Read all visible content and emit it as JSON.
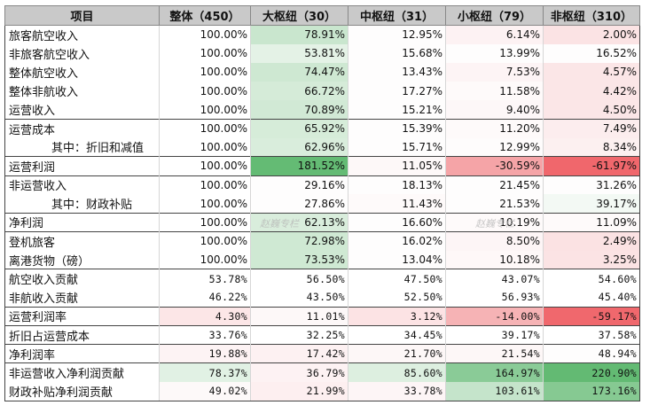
{
  "table": {
    "headers": [
      "项目",
      "整体（450）",
      "大枢纽（30）",
      "中枢纽（31）",
      "小枢纽（79）",
      "非枢纽（310）"
    ],
    "rows": [
      {
        "label": "旅客航空收入",
        "values": [
          "100.00%",
          "78.91%",
          "12.95%",
          "6.14%",
          "2.00%"
        ],
        "bg": [
          "#ffffff",
          "#c9e6ce",
          "#fefdfd",
          "#fdf2f3",
          "#fbe3e4"
        ],
        "group_top": true
      },
      {
        "label": "非旅客航空收入",
        "values": [
          "100.00%",
          "53.81%",
          "15.68%",
          "13.99%",
          "16.52%"
        ],
        "bg": [
          "#ffffff",
          "#e4f2e6",
          "#fefdfd",
          "#fefdfd",
          "#fefdfd"
        ]
      },
      {
        "label": "整体航空收入",
        "values": [
          "100.00%",
          "74.47%",
          "13.43%",
          "7.53%",
          "4.57%"
        ],
        "bg": [
          "#ffffff",
          "#cee8d2",
          "#fefdfd",
          "#fdf4f5",
          "#fbe6e7"
        ]
      },
      {
        "label": "整体非航收入",
        "values": [
          "100.00%",
          "66.72%",
          "17.27%",
          "11.58%",
          "4.42%"
        ],
        "bg": [
          "#ffffff",
          "#d5ebd8",
          "#fefdfd",
          "#fefafa",
          "#fbe6e7"
        ]
      },
      {
        "label": "运营收入",
        "values": [
          "100.00%",
          "70.89%",
          "15.21%",
          "9.40%",
          "4.50%"
        ],
        "bg": [
          "#ffffff",
          "#d1e9d5",
          "#fefdfd",
          "#fdf7f8",
          "#fbe6e7"
        ]
      },
      {
        "label": "运营成本",
        "values": [
          "100.00%",
          "65.92%",
          "15.39%",
          "11.20%",
          "7.49%"
        ],
        "bg": [
          "#ffffff",
          "#d6ecd9",
          "#fefdfd",
          "#fefafa",
          "#fcedee"
        ],
        "group_top": true
      },
      {
        "label": "其中：折旧和减值",
        "values": [
          "100.00%",
          "62.96%",
          "15.71%",
          "12.99%",
          "8.34%"
        ],
        "bg": [
          "#ffffff",
          "#d9eddc",
          "#fefdfd",
          "#fefcfc",
          "#fcf0f0"
        ],
        "sub": true
      },
      {
        "label": "运营利润",
        "values": [
          "100.00%",
          "181.52%",
          "11.05%",
          "-30.59%",
          "-61.97%"
        ],
        "bg": [
          "#ffffff",
          "#64bb74",
          "#fdf8f8",
          "#f5a4a7",
          "#f0676c"
        ],
        "group_top": true
      },
      {
        "label": "非运营收入",
        "values": [
          "100.00%",
          "29.16%",
          "18.13%",
          "21.45%",
          "31.26%"
        ],
        "bg": [
          "#ffffff",
          "#fefdfd",
          "#fefdfd",
          "#fefdfd",
          "#fefdfd"
        ],
        "group_top": true
      },
      {
        "label": "其中：财政补贴",
        "values": [
          "100.00%",
          "27.86%",
          "11.43%",
          "21.53%",
          "39.17%"
        ],
        "bg": [
          "#ffffff",
          "#fefdfd",
          "#fefafa",
          "#fefdfd",
          "#f3f9f4"
        ],
        "sub": true
      },
      {
        "label": "净利润",
        "values": [
          "100.00%",
          "62.13%",
          "16.60%",
          "10.19%",
          "11.09%"
        ],
        "bg": [
          "#ffffff",
          "#d9eddc",
          "#fefdfd",
          "#fefafa",
          "#fefafa"
        ],
        "group_top": true
      },
      {
        "label": "登机旅客",
        "values": [
          "100.00%",
          "72.98%",
          "16.02%",
          "8.50%",
          "2.49%"
        ],
        "bg": [
          "#ffffff",
          "#cfe9d3",
          "#fefdfd",
          "#fdf5f6",
          "#fbe2e3"
        ],
        "group_top": true
      },
      {
        "label": "离港货物（磅）",
        "values": [
          "100.00%",
          "73.53%",
          "13.04%",
          "10.18%",
          "3.25%"
        ],
        "bg": [
          "#ffffff",
          "#cfe9d3",
          "#fefdfd",
          "#fef8f8",
          "#fbe3e4"
        ]
      },
      {
        "label": "航空收入贡献",
        "values": [
          "53.78%",
          "56.50%",
          "47.50%",
          "43.07%",
          "54.60%"
        ],
        "bg": [
          "#ffffff",
          "#ffffff",
          "#ffffff",
          "#ffffff",
          "#ffffff"
        ],
        "group_top": true,
        "mono": true
      },
      {
        "label": "非航收入贡献",
        "values": [
          "46.22%",
          "43.50%",
          "52.50%",
          "56.93%",
          "45.40%"
        ],
        "bg": [
          "#ffffff",
          "#ffffff",
          "#ffffff",
          "#ffffff",
          "#ffffff"
        ],
        "mono": true
      },
      {
        "label": "运营利润率",
        "values": [
          "4.30%",
          "11.01%",
          "3.12%",
          "-14.00%",
          "-59.17%"
        ],
        "bg": [
          "#fce6e7",
          "#fdf8f8",
          "#fce3e4",
          "#f6b3b5",
          "#f0686d"
        ],
        "group_top": true,
        "mono": true
      },
      {
        "label": "折旧占运营成本",
        "values": [
          "33.76%",
          "32.25%",
          "34.45%",
          "39.17%",
          "37.58%"
        ],
        "bg": [
          "#ffffff",
          "#ffffff",
          "#ffffff",
          "#ffffff",
          "#ffffff"
        ],
        "group_top": true,
        "mono": true
      },
      {
        "label": "净利润率",
        "values": [
          "19.88%",
          "17.42%",
          "21.70%",
          "21.54%",
          "48.94%"
        ],
        "bg": [
          "#fdf3f4",
          "#fdf1f2",
          "#fdf7f7",
          "#fdf7f7",
          "#fefdfd"
        ],
        "group_top": true,
        "mono": true
      },
      {
        "label": "非运营收入净利润贡献",
        "values": [
          "78.37%",
          "36.79%",
          "85.60%",
          "164.97%",
          "220.90%"
        ],
        "bg": [
          "#e1f1e4",
          "#fdf2f3",
          "#ddefe0",
          "#8acb97",
          "#63ba73"
        ],
        "group_top": true,
        "mono": true
      },
      {
        "label": "财政补贴净利润贡献",
        "values": [
          "49.02%",
          "21.99%",
          "33.78%",
          "103.61%",
          "173.16%"
        ],
        "bg": [
          "#fdf9f9",
          "#fdeff0",
          "#fdf5f6",
          "#c5e4cb",
          "#86c992"
        ],
        "mono": true
      }
    ]
  },
  "watermarks": [
    "赵巍专栏",
    "赵巍专栏"
  ]
}
